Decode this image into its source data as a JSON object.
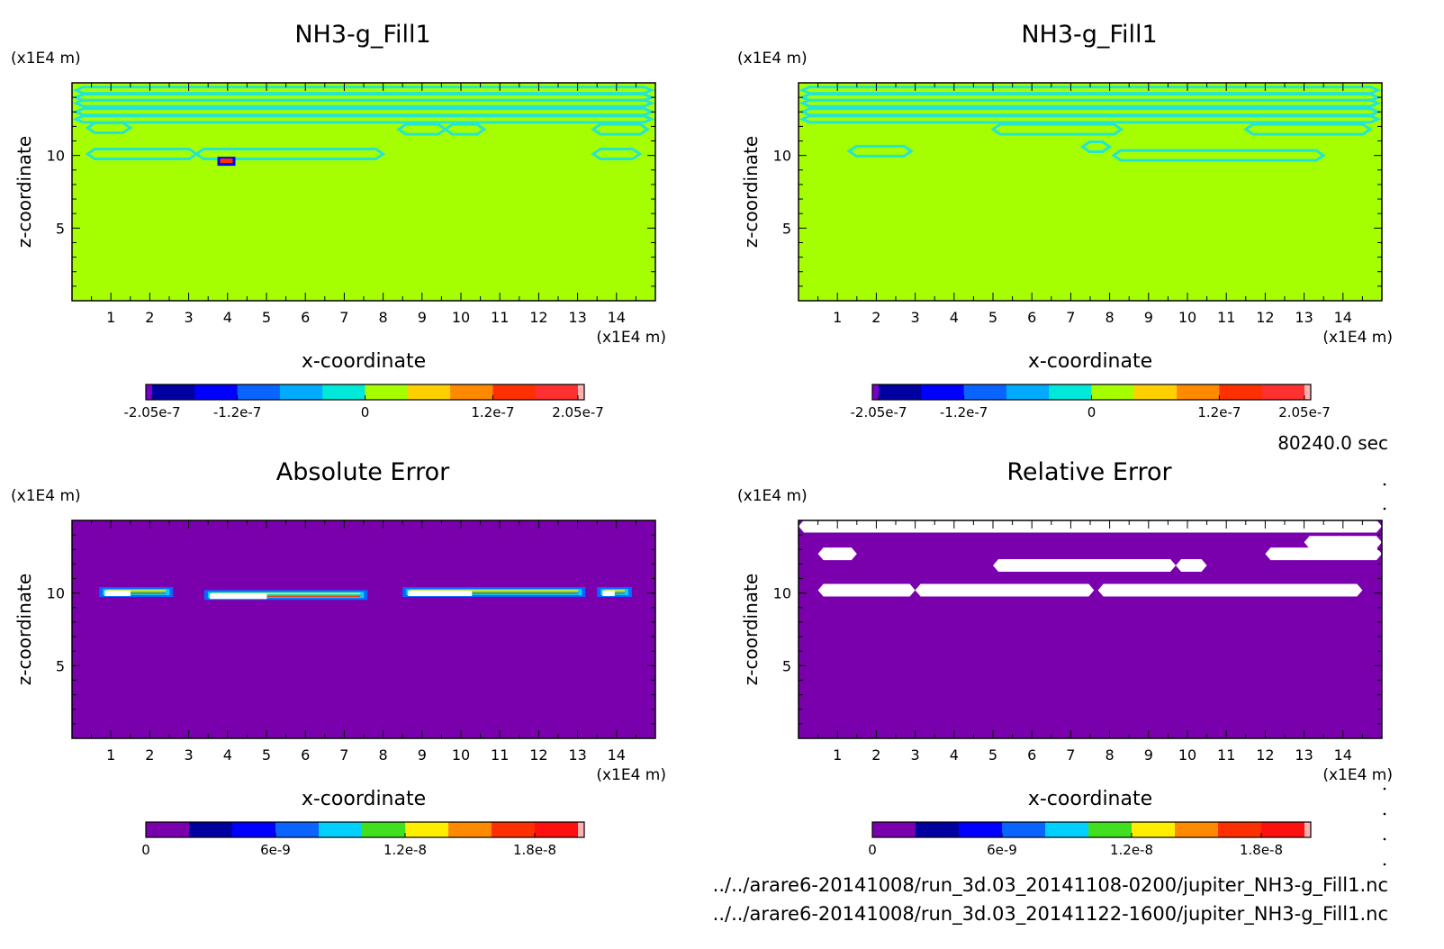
{
  "time_label": "80240.0 sec",
  "file_paths": [
    "../../arare6-20141008/run_3d.03_20141108-0200/jupiter_NH3-g_Fill1.nc",
    "../../arare6-20141008/run_3d.03_20141122-1600/jupiter_NH3-g_Fill1.nc"
  ],
  "chart_data": [
    {
      "type": "heatmap",
      "title": "NH3-g_Fill1",
      "xlabel": "x-coordinate",
      "ylabel": "z-coordinate",
      "x_unit": "(x1E4 m)",
      "y_unit": "(x1E4 m)",
      "xlim": [
        0,
        15
      ],
      "ylim": [
        0,
        15
      ],
      "x_ticks": [
        "1",
        "2",
        "3",
        "4",
        "5",
        "6",
        "7",
        "8",
        "9",
        "10",
        "11",
        "12",
        "13",
        "14"
      ],
      "y_ticks": [
        "5",
        "10"
      ],
      "background_color": "#a6ff00",
      "contour_color": "#22e6d2",
      "colorbar": {
        "tick_labels": [
          "-2.05e-7",
          "-1.2e-7",
          "0",
          "1.2e-7",
          "2.05e-7"
        ],
        "colors": [
          "#7a00c8",
          "#0000a0",
          "#0000ff",
          "#0a64ff",
          "#00aaff",
          "#00e8d8",
          "#a6ff00",
          "#ffd000",
          "#ff8a00",
          "#ff3000",
          "#ff3030",
          "#ffb0b0"
        ]
      },
      "features": [
        {
          "z": 14.5,
          "x0": 0.1,
          "x1": 14.9
        },
        {
          "z": 14.0,
          "x0": 0.1,
          "x1": 14.9
        },
        {
          "z": 13.6,
          "x0": 0.1,
          "x1": 14.9
        },
        {
          "z": 13.0,
          "x0": 0.1,
          "x1": 14.9
        },
        {
          "z": 12.5,
          "x0": 0.1,
          "x1": 14.9
        },
        {
          "z": 11.9,
          "x0": 0.4,
          "x1": 1.5
        },
        {
          "z": 11.8,
          "x0": 8.4,
          "x1": 9.6
        },
        {
          "z": 11.8,
          "x0": 9.6,
          "x1": 10.6
        },
        {
          "z": 11.8,
          "x0": 13.4,
          "x1": 14.8
        },
        {
          "z": 10.1,
          "x0": 0.4,
          "x1": 3.2
        },
        {
          "z": 10.1,
          "x0": 3.2,
          "x1": 8.0
        },
        {
          "z": 10.1,
          "x0": 13.4,
          "x1": 14.6
        }
      ],
      "hotspot": {
        "x": 3.97,
        "z": 9.6
      }
    },
    {
      "type": "heatmap",
      "title": "NH3-g_Fill1",
      "xlabel": "x-coordinate",
      "ylabel": "z-coordinate",
      "x_unit": "(x1E4 m)",
      "y_unit": "(x1E4 m)",
      "xlim": [
        0,
        15
      ],
      "ylim": [
        0,
        15
      ],
      "x_ticks": [
        "1",
        "2",
        "3",
        "4",
        "5",
        "6",
        "7",
        "8",
        "9",
        "10",
        "11",
        "12",
        "13",
        "14"
      ],
      "y_ticks": [
        "5",
        "10"
      ],
      "background_color": "#a6ff00",
      "contour_color": "#22e6d2",
      "colorbar": {
        "tick_labels": [
          "-2.05e-7",
          "-1.2e-7",
          "0",
          "1.2e-7",
          "2.05e-7"
        ],
        "colors": [
          "#7a00c8",
          "#0000a0",
          "#0000ff",
          "#0a64ff",
          "#00aaff",
          "#00e8d8",
          "#a6ff00",
          "#ffd000",
          "#ff8a00",
          "#ff3000",
          "#ff3030",
          "#ffb0b0"
        ]
      },
      "features": [
        {
          "z": 14.5,
          "x0": 0.1,
          "x1": 14.9
        },
        {
          "z": 14.0,
          "x0": 0.1,
          "x1": 14.9
        },
        {
          "z": 13.6,
          "x0": 0.1,
          "x1": 14.9
        },
        {
          "z": 13.0,
          "x0": 0.1,
          "x1": 14.9
        },
        {
          "z": 12.5,
          "x0": 0.1,
          "x1": 14.9
        },
        {
          "z": 11.8,
          "x0": 5.0,
          "x1": 8.3
        },
        {
          "z": 11.8,
          "x0": 11.5,
          "x1": 14.7
        },
        {
          "z": 10.3,
          "x0": 1.3,
          "x1": 2.9
        },
        {
          "z": 10.6,
          "x0": 7.3,
          "x1": 8.0
        },
        {
          "z": 10.0,
          "x0": 8.1,
          "x1": 13.5
        }
      ],
      "hotspot": null
    },
    {
      "type": "heatmap",
      "title": "Absolute Error",
      "xlabel": "x-coordinate",
      "ylabel": "z-coordinate",
      "x_unit": "(x1E4 m)",
      "y_unit": "(x1E4 m)",
      "xlim": [
        0,
        15
      ],
      "ylim": [
        0,
        15
      ],
      "x_ticks": [
        "1",
        "2",
        "3",
        "4",
        "5",
        "6",
        "7",
        "8",
        "9",
        "10",
        "11",
        "12",
        "13",
        "14"
      ],
      "y_ticks": [
        "5",
        "10"
      ],
      "background_color": "#7b00ad",
      "colorbar": {
        "tick_labels": [
          "0",
          "6e-9",
          "1.2e-8",
          "1.8e-8"
        ],
        "colors": [
          "#7b00ad",
          "#0000a0",
          "#0000ff",
          "#0a64ff",
          "#00d0ff",
          "#40e020",
          "#ffee00",
          "#ff8a00",
          "#ff3000",
          "#ff1010",
          "#ffb0b0"
        ]
      },
      "features": [
        {
          "z": 10.1,
          "x0": 0.7,
          "x1": 2.6
        },
        {
          "z": 9.9,
          "x0": 3.4,
          "x1": 7.6
        },
        {
          "z": 10.1,
          "x0": 8.5,
          "x1": 13.2
        },
        {
          "z": 10.1,
          "x0": 13.5,
          "x1": 14.4
        }
      ]
    },
    {
      "type": "heatmap",
      "title": "Relative Error",
      "xlabel": "x-coordinate",
      "ylabel": "z-coordinate",
      "x_unit": "(x1E4 m)",
      "y_unit": "(x1E4 m)",
      "xlim": [
        0,
        15
      ],
      "ylim": [
        0,
        15
      ],
      "x_ticks": [
        "1",
        "2",
        "3",
        "4",
        "5",
        "6",
        "7",
        "8",
        "9",
        "10",
        "11",
        "12",
        "13",
        "14"
      ],
      "y_ticks": [
        "5",
        "10"
      ],
      "background_color": "#7b00ad",
      "colorbar": {
        "tick_labels": [
          "0",
          "6e-9",
          "1.2e-8",
          "1.8e-8"
        ],
        "colors": [
          "#7b00ad",
          "#0000a0",
          "#0000ff",
          "#0a64ff",
          "#00d0ff",
          "#40e020",
          "#ffee00",
          "#ff8a00",
          "#ff3000",
          "#ff1010",
          "#ffb0b0"
        ]
      },
      "features": [
        {
          "z": 14.6,
          "x0": 0.0,
          "x1": 15.0
        },
        {
          "z": 13.5,
          "x0": 13.0,
          "x1": 15.0
        },
        {
          "z": 12.7,
          "x0": 0.5,
          "x1": 1.5
        },
        {
          "z": 12.7,
          "x0": 12.0,
          "x1": 15.0
        },
        {
          "z": 11.9,
          "x0": 5.0,
          "x1": 9.7
        },
        {
          "z": 11.9,
          "x0": 9.7,
          "x1": 10.5
        },
        {
          "z": 10.2,
          "x0": 0.5,
          "x1": 3.0
        },
        {
          "z": 10.2,
          "x0": 3.0,
          "x1": 7.6
        },
        {
          "z": 10.2,
          "x0": 7.7,
          "x1": 14.5
        }
      ]
    }
  ]
}
